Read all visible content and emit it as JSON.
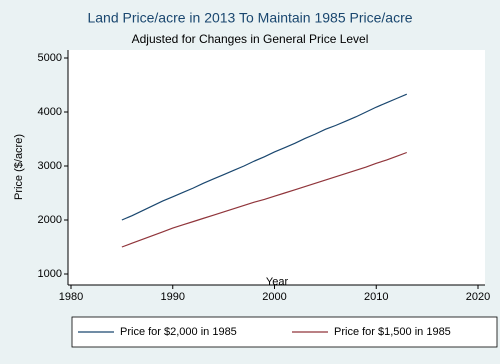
{
  "chart_data": {
    "type": "line",
    "title": "Land Price/acre  in 2013 To Maintain 1985 Price/acre",
    "subtitle": "Adjusted for Changes in General Price Level",
    "x_label": "Year",
    "y_label": "Price ($/acre)",
    "x": [
      1985,
      1986,
      1987,
      1988,
      1989,
      1990,
      1991,
      1992,
      1993,
      1994,
      1995,
      1996,
      1997,
      1998,
      1999,
      2000,
      2001,
      2002,
      2003,
      2004,
      2005,
      2006,
      2007,
      2008,
      2009,
      2010,
      2011,
      2012,
      2013
    ],
    "series": [
      {
        "name": "Price for $2,000 in 1985",
        "color": "#1a476f",
        "values": [
          2000,
          2080,
          2170,
          2260,
          2350,
          2430,
          2510,
          2590,
          2680,
          2760,
          2840,
          2920,
          3000,
          3090,
          3170,
          3260,
          3340,
          3420,
          3510,
          3590,
          3680,
          3750,
          3830,
          3910,
          4000,
          4090,
          4170,
          4250,
          4330
        ]
      },
      {
        "name": "Price for $1,500 in 1985",
        "color": "#90353b",
        "values": [
          1500,
          1570,
          1640,
          1710,
          1780,
          1850,
          1910,
          1970,
          2030,
          2090,
          2150,
          2210,
          2270,
          2330,
          2380,
          2440,
          2500,
          2560,
          2620,
          2680,
          2740,
          2800,
          2860,
          2920,
          2980,
          3050,
          3110,
          3180,
          3250
        ]
      }
    ],
    "xlim": [
      1980,
      2020
    ],
    "xticks": [
      1980,
      1990,
      2000,
      2010,
      2020
    ],
    "ylim": [
      1000,
      5000
    ],
    "yticks": [
      1000,
      2000,
      3000,
      4000,
      5000
    ],
    "grid": false,
    "legend": "bottom"
  }
}
